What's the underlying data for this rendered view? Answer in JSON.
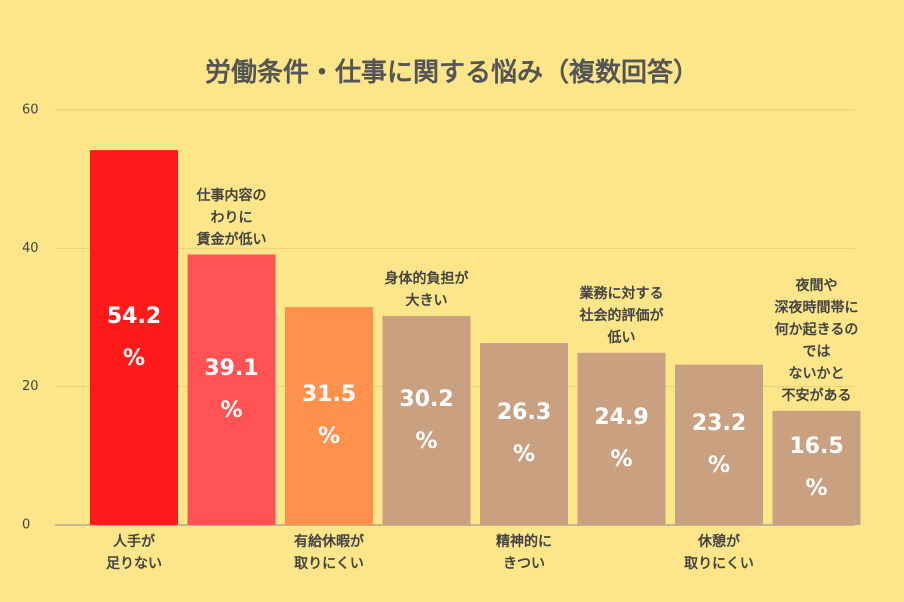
{
  "chart_data": {
    "type": "bar",
    "title": "労働条件・仕事に関する悩み（複数回答）",
    "categories": [
      "人手が\n足りない",
      "仕事内容の\nわりに\n賃金が低い",
      "有給休暇が\n取りにくい",
      "身体的負担が\n大きい",
      "精神的に\nきつい",
      "業務に対する\n社会的評価が\n低い",
      "休憩が\n取りにくい",
      "夜間や\n深夜時間帯に\n何か起きるのでは\nないかと\n不安がある"
    ],
    "values": [
      54.2,
      39.1,
      31.5,
      30.2,
      26.3,
      24.9,
      23.2,
      16.5
    ],
    "value_labels": [
      "54.2\n%",
      "39.1\n%",
      "31.5\n%",
      "30.2\n%",
      "26.3\n%",
      "24.9\n%",
      "23.2\n%",
      "16.5\n%"
    ],
    "colors": [
      "#ff1a1a",
      "#ff5252",
      "#ff914d",
      "#c9a080",
      "#c9a080",
      "#c9a080",
      "#c9a080",
      "#c9a080"
    ],
    "ylim": [
      0,
      60
    ],
    "yticks": [
      0,
      20,
      40,
      60
    ],
    "grid": true
  }
}
